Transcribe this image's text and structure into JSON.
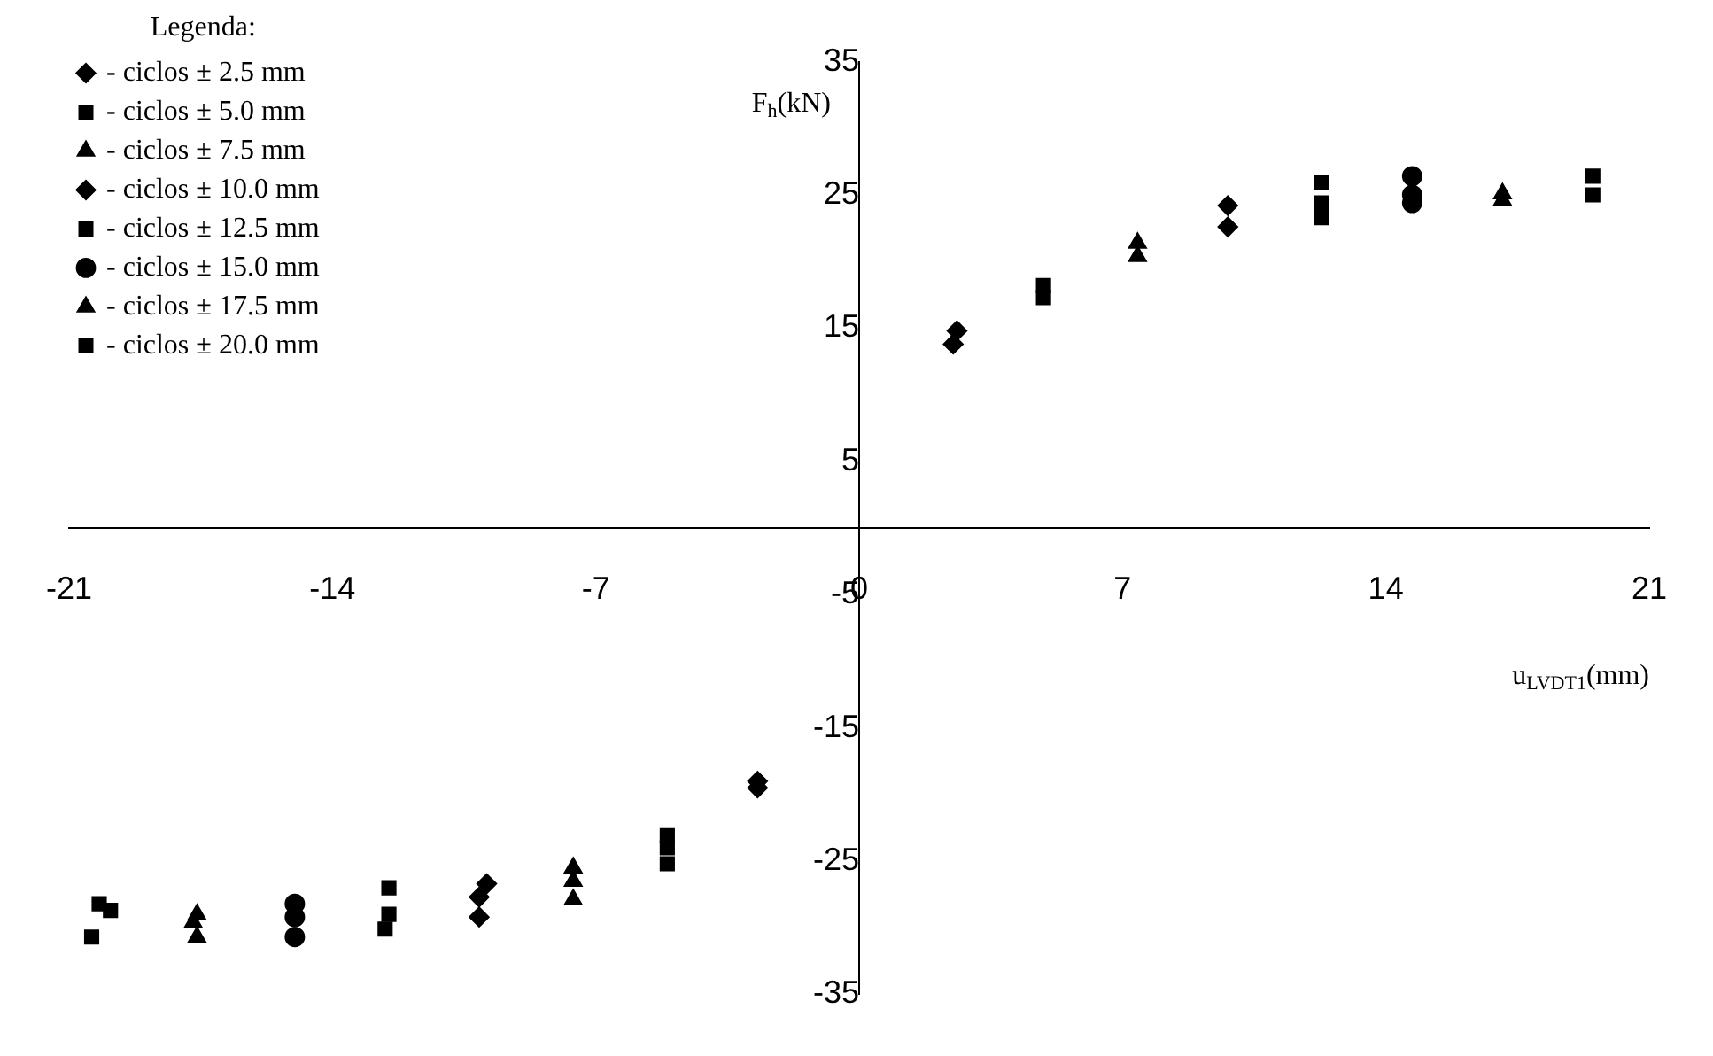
{
  "chart_data": {
    "type": "scatter",
    "xlabel": "u$_{LVDT1}$(mm)",
    "ylabel": "F$_{h}$(kN)",
    "legend_title": "Legenda:",
    "legend": "top left",
    "grid": false,
    "xlim": [
      -21,
      21
    ],
    "xticks": [
      -21,
      -14,
      -7,
      0,
      7,
      14,
      21
    ],
    "ylim": [
      -35,
      35
    ],
    "yticks": [
      -35,
      -25,
      -15,
      -5,
      5,
      15,
      25,
      35
    ],
    "series": [
      {
        "name": "- ciclos ± 2.5 mm",
        "color": "#000000",
        "marker": "diamond",
        "x": [
          2.6,
          2.5,
          -2.7,
          -2.7
        ],
        "values": [
          14.8,
          13.8,
          -19,
          -19.5
        ]
      },
      {
        "name": "- ciclos ± 5.0 mm",
        "color": "#000000",
        "marker": "square",
        "x": [
          4.9,
          4.9,
          -5.1,
          -5.1,
          -5.1
        ],
        "values": [
          18.2,
          17.3,
          -23.1,
          -24,
          -25.2
        ]
      },
      {
        "name": "- ciclos ± 7.5 mm",
        "color": "#000000",
        "marker": "triangle",
        "x": [
          7.4,
          7.4,
          -7.6,
          -7.6,
          -7.6
        ],
        "values": [
          21.4,
          20.4,
          -25.5,
          -26.5,
          -27.9
        ]
      },
      {
        "name": "- ciclos ± 10.0 mm",
        "color": "#000000",
        "marker": "diamond",
        "x": [
          9.8,
          9.8,
          -9.9,
          -10.1,
          -10.1
        ],
        "values": [
          24.2,
          22.6,
          -26.7,
          -27.7,
          -29.2
        ]
      },
      {
        "name": "- ciclos ± 12.5 mm",
        "color": "#000000",
        "marker": "square",
        "x": [
          12.3,
          12.3,
          12.3,
          -12.5,
          -12.5,
          -12.6
        ],
        "values": [
          25.9,
          24.4,
          23.3,
          -27,
          -29,
          -30.1
        ]
      },
      {
        "name": "- ciclos ± 15.0 mm",
        "color": "#000000",
        "marker": "circle",
        "x": [
          14.7,
          14.7,
          14.7,
          -15,
          -15,
          -15
        ],
        "values": [
          26.4,
          25,
          24.4,
          -28.2,
          -29.2,
          -30.7
        ]
      },
      {
        "name": "- ciclos ± 17.5 mm",
        "color": "#000000",
        "marker": "triangle",
        "x": [
          17.1,
          17.1,
          -17.6,
          -17.7,
          -17.6
        ],
        "values": [
          25.1,
          24.6,
          -29,
          -29.6,
          -30.7
        ]
      },
      {
        "name": "- ciclos ± 20.0 mm",
        "color": "#000000",
        "marker": "square",
        "x": [
          19.5,
          19.5,
          -20.2,
          -19.9,
          -20.4
        ],
        "values": [
          26.4,
          25,
          -28.2,
          -28.7,
          -30.7
        ]
      }
    ]
  }
}
